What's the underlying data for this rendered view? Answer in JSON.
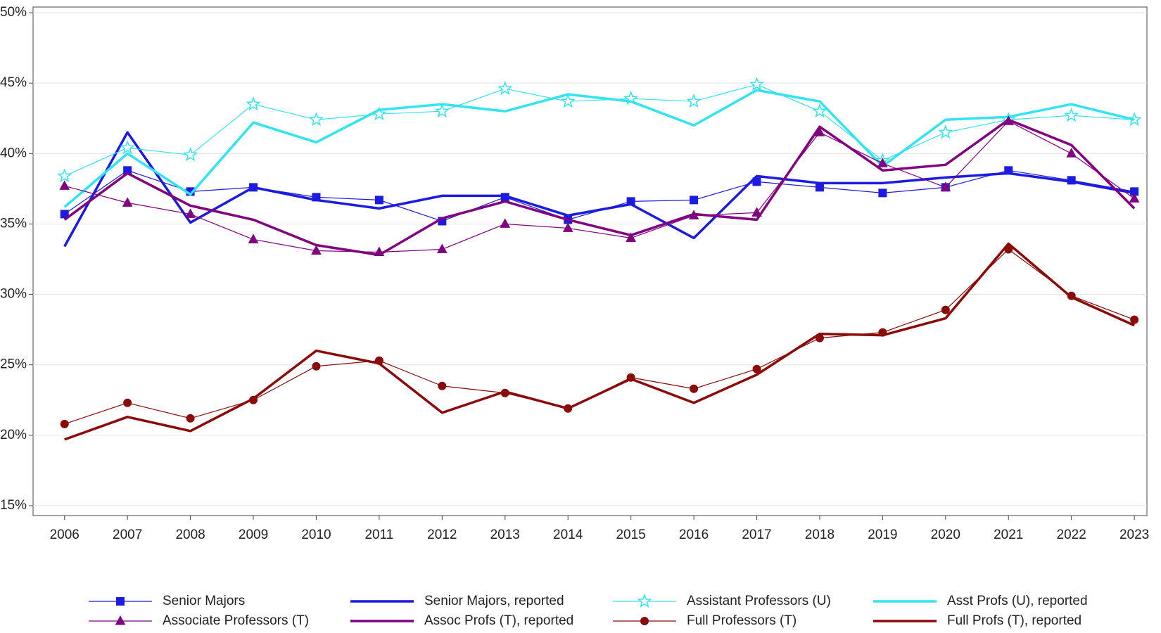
{
  "chart_data": {
    "type": "line",
    "x": [
      2006,
      2007,
      2008,
      2009,
      2010,
      2011,
      2012,
      2013,
      2014,
      2015,
      2016,
      2017,
      2018,
      2019,
      2020,
      2021,
      2022,
      2023
    ],
    "xlim": [
      2005.5,
      2023.2
    ],
    "xticks": [
      2006,
      2007,
      2008,
      2009,
      2010,
      2011,
      2012,
      2013,
      2014,
      2015,
      2016,
      2017,
      2018,
      2019,
      2020,
      2021,
      2022,
      2023
    ],
    "ylim": [
      14.3,
      50.4
    ],
    "yticks": [
      {
        "value": 15,
        "label": "15%"
      },
      {
        "value": 20,
        "label": "20%"
      },
      {
        "value": 25,
        "label": "25%"
      },
      {
        "value": 30,
        "label": "30%"
      },
      {
        "value": 35,
        "label": "35%"
      },
      {
        "value": 40,
        "label": "40%"
      },
      {
        "value": 45,
        "label": "45%"
      },
      {
        "value": 50,
        "label": "50%"
      }
    ],
    "grid": true,
    "legend": "bottom",
    "series": [
      {
        "name": "Senior Majors",
        "color": "#1c1ce0",
        "marker": "square",
        "line_width": 1.2,
        "values": [
          35.7,
          38.8,
          37.3,
          37.6,
          36.9,
          36.7,
          35.2,
          36.9,
          35.3,
          36.6,
          36.7,
          38.0,
          37.6,
          37.2,
          37.6,
          38.8,
          38.1,
          37.3
        ]
      },
      {
        "name": "Senior Majors, reported",
        "color": "#1c1ce0",
        "marker": "none",
        "line_width": 3.5,
        "values": [
          33.4,
          41.5,
          35.1,
          37.6,
          36.7,
          36.1,
          37.0,
          37.0,
          35.6,
          36.4,
          34.0,
          38.4,
          37.9,
          37.9,
          38.3,
          38.6,
          38.0,
          37.2
        ]
      },
      {
        "name": "Assistant Professors (U)",
        "color": "#33e3f0",
        "marker": "star",
        "line_width": 1.2,
        "values": [
          38.4,
          40.4,
          39.9,
          43.5,
          42.4,
          42.8,
          43.0,
          44.6,
          43.7,
          43.9,
          43.7,
          44.9,
          43.0,
          39.5,
          41.5,
          42.4,
          42.7,
          42.4
        ]
      },
      {
        "name": "Asst Profs (U), reported",
        "color": "#33e3f0",
        "marker": "none",
        "line_width": 3.5,
        "values": [
          36.2,
          40.0,
          37.1,
          42.2,
          40.8,
          43.1,
          43.5,
          43.0,
          44.2,
          43.7,
          42.0,
          44.5,
          43.7,
          39.1,
          42.4,
          42.6,
          43.5,
          42.4
        ]
      },
      {
        "name": "Associate Professors (T)",
        "color": "#800080",
        "marker": "triangle",
        "line_width": 1.2,
        "values": [
          37.7,
          36.5,
          35.7,
          33.9,
          33.1,
          33.0,
          33.2,
          35.0,
          34.7,
          34.0,
          35.6,
          35.8,
          41.5,
          39.3,
          37.6,
          42.3,
          40.0,
          36.8
        ]
      },
      {
        "name": "Assoc Profs (T), reported",
        "color": "#800080",
        "marker": "none",
        "line_width": 3.5,
        "values": [
          35.3,
          38.6,
          36.3,
          35.3,
          33.5,
          32.8,
          35.4,
          36.6,
          35.3,
          34.2,
          35.7,
          35.3,
          41.9,
          38.8,
          39.2,
          42.4,
          40.6,
          36.1
        ]
      },
      {
        "name": "Full Professors (T)",
        "color": "#8b0a0a",
        "marker": "circle",
        "line_width": 1.2,
        "values": [
          20.8,
          22.3,
          21.2,
          22.5,
          24.9,
          25.3,
          23.5,
          23.0,
          21.9,
          24.1,
          23.3,
          24.7,
          26.9,
          27.3,
          28.9,
          33.2,
          29.9,
          28.2
        ]
      },
      {
        "name": "Full Profs (T), reported",
        "color": "#8b0a0a",
        "marker": "none",
        "line_width": 3.5,
        "values": [
          19.7,
          21.3,
          20.3,
          22.6,
          26.0,
          25.1,
          21.6,
          23.1,
          21.9,
          24.0,
          22.3,
          24.3,
          27.2,
          27.1,
          28.3,
          33.6,
          29.8,
          27.8
        ]
      }
    ]
  }
}
